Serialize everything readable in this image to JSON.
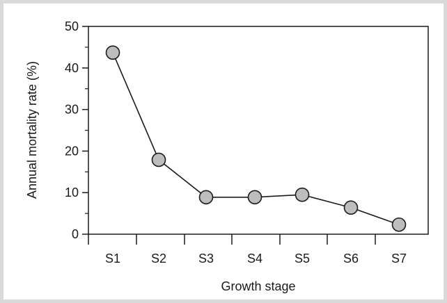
{
  "chart_data": {
    "type": "line",
    "categories": [
      "S1",
      "S2",
      "S3",
      "S4",
      "S5",
      "S6",
      "S7"
    ],
    "series": [
      {
        "values": [
          43.7,
          17.9,
          8.9,
          8.9,
          9.5,
          6.4,
          2.3
        ]
      }
    ],
    "xlabel": "Growth stage",
    "ylabel": "Annual mortality rate (%)",
    "ylim": [
      0,
      50
    ],
    "yticks": [
      0,
      10,
      20,
      30,
      40,
      50
    ],
    "grid": false,
    "marker": "circle",
    "colors": {
      "line": "#1a1a1a",
      "marker_fill": "#bdbdbd",
      "marker_stroke": "#1a1a1a",
      "background": "#ffffff",
      "border": "#d9d9d9"
    }
  }
}
